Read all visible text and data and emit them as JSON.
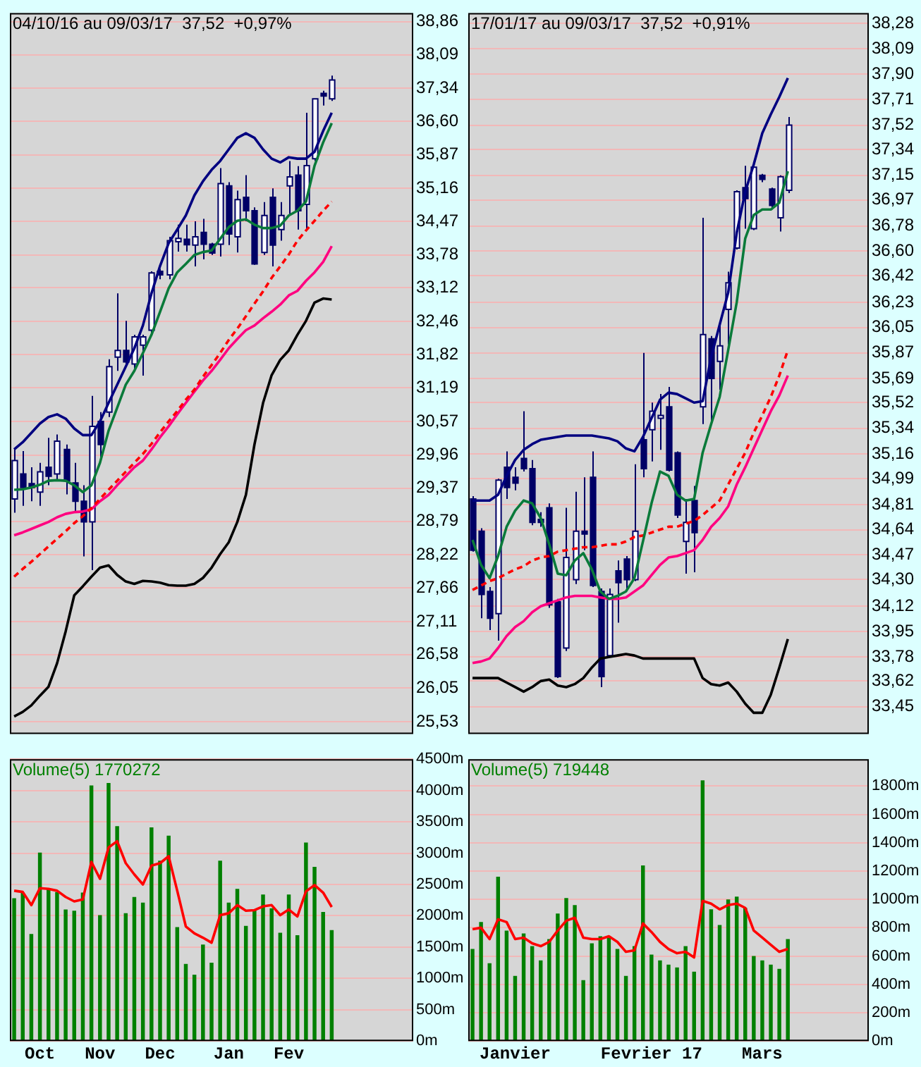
{
  "chart_data": [
    {
      "type": "candlestick",
      "title": "04/10/16 au 09/03/17  37,52  +0,97%",
      "log": "y",
      "grid": "y",
      "marker": "none",
      "tick_labels": "y",
      "color": "#000066",
      "colors": [
        "#ffffff",
        "#000066",
        "#000066",
        "#ffffff",
        "#000066",
        "#ffffff",
        "#000066",
        "#000066",
        "#000066",
        "#ffffff",
        "#000066",
        "#ffffff",
        "#ffffff",
        "#000066",
        "#ffffff",
        "#ffffff",
        "#ffffff",
        "#000066",
        "#ffffff",
        "#ffffff",
        "#000066",
        "#ffffff",
        "#000066",
        "#000066",
        "#ffffff",
        "#000066",
        "#ffffff",
        "#000066",
        "#000066",
        "#ffffff",
        "#000066",
        "#ffffff",
        "#ffffff",
        "#000066",
        "#ffffff",
        "#ffffff",
        "#000066",
        "#ffffff",
        null,
        null,
        null,
        null,
        null,
        null,
        null,
        null,
        null
      ],
      "categories": [
        null,
        null,
        null,
        null,
        null,
        null,
        null,
        null,
        null,
        null,
        null,
        null,
        null,
        null,
        null,
        null,
        null,
        null,
        null,
        null,
        null,
        null,
        null,
        null,
        null,
        null,
        null,
        null,
        null,
        null,
        null,
        null,
        null,
        null,
        null,
        null,
        null,
        null,
        null,
        null,
        null,
        null,
        null,
        null,
        null,
        null,
        null
      ],
      "ylim": [
        25.34,
        39.06
      ],
      "yticks": [
        {
          "value": 25.53,
          "label": "25,53"
        },
        {
          "value": 26.05,
          "label": "26,05"
        },
        {
          "value": 26.58,
          "label": "26,58"
        },
        {
          "value": 27.11,
          "label": "27,11"
        },
        {
          "value": 27.66,
          "label": "27,66"
        },
        {
          "value": 28.22,
          "label": "28,22"
        },
        {
          "value": 28.79,
          "label": "28,79"
        },
        {
          "value": 29.37,
          "label": "29,37"
        },
        {
          "value": 29.96,
          "label": "29,96"
        },
        {
          "value": 30.57,
          "label": "30,57"
        },
        {
          "value": 31.19,
          "label": "31,19"
        },
        {
          "value": 31.82,
          "label": "31,82"
        },
        {
          "value": 32.46,
          "label": "32,46"
        },
        {
          "value": 33.12,
          "label": "33,12"
        },
        {
          "value": 33.78,
          "label": "33,78"
        },
        {
          "value": 34.47,
          "label": "34,47"
        },
        {
          "value": 35.16,
          "label": "35,16"
        },
        {
          "value": 35.87,
          "label": "35,87"
        },
        {
          "value": 36.6,
          "label": "36,60"
        },
        {
          "value": 37.34,
          "label": "37,34"
        },
        {
          "value": 38.09,
          "label": "38,09"
        },
        {
          "value": 38.86,
          "label": "38,86"
        }
      ],
      "ohlc": [
        [
          29.18,
          30.06,
          28.94,
          29.86
        ],
        [
          29.62,
          30.03,
          29.06,
          29.38
        ],
        [
          29.45,
          29.74,
          29.14,
          29.38
        ],
        [
          29.3,
          29.82,
          29.06,
          29.66
        ],
        [
          29.74,
          30.27,
          29.42,
          29.58
        ],
        [
          29.62,
          30.33,
          29.5,
          30.21
        ],
        [
          30.06,
          30.15,
          29.26,
          29.5
        ],
        [
          29.46,
          29.82,
          28.94,
          29.14
        ],
        [
          29.14,
          29.42,
          28.19,
          28.78
        ],
        [
          28.78,
          31.04,
          27.96,
          30.48
        ],
        [
          30.57,
          30.74,
          29.9,
          30.15
        ],
        [
          30.74,
          31.73,
          30.65,
          31.59
        ],
        [
          31.77,
          33.01,
          31.51,
          31.9
        ],
        [
          31.9,
          32.47,
          31.59,
          31.68
        ],
        [
          31.64,
          32.2,
          31.51,
          32.16
        ],
        [
          32.0,
          32.2,
          31.42,
          32.16
        ],
        [
          32.29,
          33.45,
          32.2,
          33.42
        ],
        [
          33.45,
          33.5,
          33.29,
          33.38
        ],
        [
          33.38,
          34.15,
          33.29,
          34.07
        ],
        [
          34.05,
          34.4,
          33.85,
          34.12
        ],
        [
          34.1,
          34.4,
          33.85,
          33.99
        ],
        [
          33.98,
          34.47,
          33.55,
          34.15
        ],
        [
          34.24,
          34.52,
          33.69,
          34.0
        ],
        [
          34.0,
          34.03,
          33.78,
          33.82
        ],
        [
          34.0,
          35.59,
          33.75,
          35.26
        ],
        [
          35.21,
          35.29,
          33.98,
          34.21
        ],
        [
          34.15,
          35.11,
          33.83,
          34.92
        ],
        [
          34.97,
          35.44,
          34.47,
          34.69
        ],
        [
          34.69,
          34.76,
          33.58,
          33.6
        ],
        [
          33.83,
          34.87,
          33.78,
          34.59
        ],
        [
          34.97,
          35.16,
          33.55,
          33.98
        ],
        [
          34.3,
          34.87,
          34.07,
          34.59
        ],
        [
          35.21,
          35.74,
          34.59,
          35.4
        ],
        [
          35.44,
          35.63,
          34.3,
          34.69
        ],
        [
          34.82,
          36.79,
          34.3,
          35.64
        ],
        [
          35.79,
          37.1,
          35.74,
          37.1
        ],
        [
          37.22,
          37.28,
          36.95,
          37.16
        ],
        [
          37.1,
          37.62,
          37.05,
          37.52
        ],
        null,
        null,
        null,
        null,
        null,
        null,
        null,
        null,
        null
      ],
      "series": [
        {
          "type": "line",
          "color": "#000080",
          "values": [
            30.06,
            30.19,
            30.36,
            30.53,
            30.65,
            30.7,
            30.62,
            30.44,
            30.32,
            30.32,
            30.57,
            30.91,
            31.25,
            31.59,
            31.94,
            32.38,
            33.01,
            33.56,
            34.02,
            34.3,
            34.59,
            35.01,
            35.31,
            35.55,
            35.74,
            35.99,
            36.24,
            36.34,
            36.24,
            35.99,
            35.79,
            35.71,
            35.82,
            35.79,
            35.79,
            35.94,
            36.39,
            36.79,
            null,
            null,
            null,
            null,
            null,
            null,
            null,
            null,
            null
          ]
        },
        {
          "type": "line",
          "color": "#0a7a3a",
          "values": [
            29.34,
            29.35,
            29.38,
            29.43,
            29.5,
            29.51,
            29.5,
            29.42,
            29.3,
            29.42,
            29.82,
            30.4,
            30.82,
            31.25,
            31.51,
            31.85,
            32.2,
            32.65,
            33.11,
            33.43,
            33.6,
            33.78,
            33.84,
            33.87,
            34.11,
            34.35,
            34.48,
            34.51,
            34.4,
            34.33,
            34.33,
            34.38,
            34.59,
            34.69,
            34.88,
            35.64,
            36.14,
            36.56,
            null,
            null,
            null,
            null,
            null,
            null,
            null,
            null,
            null
          ]
        },
        {
          "type": "line",
          "color": "#ff0000",
          "line_style": "dashed",
          "values": [
            27.85,
            27.98,
            28.1,
            28.23,
            28.36,
            28.49,
            28.62,
            28.76,
            28.88,
            29.02,
            29.18,
            29.34,
            29.5,
            29.66,
            29.82,
            29.98,
            30.16,
            30.37,
            30.57,
            30.76,
            30.97,
            31.16,
            31.4,
            31.62,
            31.85,
            32.1,
            32.32,
            32.56,
            32.81,
            33.05,
            33.32,
            33.55,
            33.79,
            34.07,
            34.28,
            34.48,
            34.69,
            34.88,
            null,
            null,
            null,
            null,
            null,
            null,
            null,
            null,
            null
          ]
        },
        {
          "type": "line",
          "color": "#ff0080",
          "values": [
            28.55,
            28.6,
            28.66,
            28.72,
            28.78,
            28.86,
            28.92,
            28.95,
            28.96,
            29.0,
            29.14,
            29.25,
            29.42,
            29.58,
            29.74,
            29.86,
            30.06,
            30.28,
            30.48,
            30.7,
            30.91,
            31.12,
            31.33,
            31.51,
            31.72,
            31.94,
            32.12,
            32.29,
            32.38,
            32.52,
            32.65,
            32.79,
            32.97,
            33.06,
            33.26,
            33.43,
            33.64,
            33.96,
            null,
            null,
            null,
            null,
            null,
            null,
            null,
            null,
            null
          ]
        },
        {
          "type": "line",
          "color": "#000000",
          "values": [
            25.61,
            25.68,
            25.78,
            25.93,
            26.07,
            26.44,
            26.95,
            27.54,
            27.69,
            27.85,
            28.0,
            28.04,
            27.88,
            27.77,
            27.73,
            27.78,
            27.77,
            27.75,
            27.71,
            27.7,
            27.7,
            27.73,
            27.83,
            28.0,
            28.23,
            28.43,
            28.78,
            29.25,
            30.15,
            30.91,
            31.43,
            31.72,
            31.9,
            32.2,
            32.47,
            32.83,
            32.91,
            32.89,
            null,
            null,
            null,
            null,
            null,
            null,
            null,
            null,
            null
          ]
        }
      ]
    },
    {
      "type": "candlestick",
      "title": "17/01/17 au 09/03/17  37,52  +0,91%",
      "log": "y",
      "grid": "y",
      "marker": "none",
      "tick_labels": "y",
      "color": "#000066",
      "colors": [
        "#000066",
        "#000066",
        "#000066",
        "#ffffff",
        "#000066",
        "#000066",
        "#000066",
        "#000066",
        "#000066",
        "#000066",
        "#000066",
        "#ffffff",
        "#ffffff",
        "#000066",
        "#000066",
        "#000066",
        "#ffffff",
        "#000066",
        "#000066",
        "#ffffff",
        "#000066",
        "#ffffff",
        "#ffffff",
        "#000066",
        "#000066",
        "#ffffff",
        "#000066",
        "#ffffff",
        "#000066",
        "#ffffff",
        "#ffffff",
        "#ffffff",
        "#000066",
        "#ffffff",
        "#000066",
        "#000066",
        "#ffffff",
        "#ffffff",
        null,
        null,
        null,
        null,
        null,
        null,
        null,
        null,
        null
      ],
      "categories": [
        null,
        null,
        null,
        null,
        null,
        null,
        null,
        null,
        null,
        null,
        null,
        null,
        null,
        null,
        null,
        null,
        null,
        null,
        null,
        null,
        null,
        null,
        null,
        null,
        null,
        null,
        null,
        null,
        null,
        null,
        null,
        null,
        null,
        null,
        null,
        null,
        null,
        null,
        null,
        null,
        null,
        null,
        null,
        null,
        null,
        null,
        null
      ],
      "ylim": [
        33.27,
        38.36
      ],
      "yticks": [
        {
          "value": 33.45,
          "label": "33,45"
        },
        {
          "value": 33.62,
          "label": "33,62"
        },
        {
          "value": 33.78,
          "label": "33,78"
        },
        {
          "value": 33.95,
          "label": "33,95"
        },
        {
          "value": 34.12,
          "label": "34,12"
        },
        {
          "value": 34.3,
          "label": "34,30"
        },
        {
          "value": 34.47,
          "label": "34,47"
        },
        {
          "value": 34.64,
          "label": "34,64"
        },
        {
          "value": 34.81,
          "label": "34,81"
        },
        {
          "value": 34.99,
          "label": "34,99"
        },
        {
          "value": 35.16,
          "label": "35,16"
        },
        {
          "value": 35.34,
          "label": "35,34"
        },
        {
          "value": 35.52,
          "label": "35,52"
        },
        {
          "value": 35.69,
          "label": "35,69"
        },
        {
          "value": 35.87,
          "label": "35,87"
        },
        {
          "value": 36.05,
          "label": "36,05"
        },
        {
          "value": 36.23,
          "label": "36,23"
        },
        {
          "value": 36.42,
          "label": "36,42"
        },
        {
          "value": 36.6,
          "label": "36,60"
        },
        {
          "value": 36.78,
          "label": "36,78"
        },
        {
          "value": 36.97,
          "label": "36,97"
        },
        {
          "value": 37.15,
          "label": "37,15"
        },
        {
          "value": 37.34,
          "label": "37,34"
        },
        {
          "value": 37.52,
          "label": "37,52"
        },
        {
          "value": 37.71,
          "label": "37,71"
        },
        {
          "value": 37.9,
          "label": "37,90"
        },
        {
          "value": 38.09,
          "label": "38,09"
        },
        {
          "value": 38.28,
          "label": "38,28"
        }
      ],
      "ohlc": [
        [
          34.85,
          34.87,
          34.49,
          34.5
        ],
        [
          34.63,
          34.65,
          34.04,
          34.2
        ],
        [
          34.22,
          34.25,
          33.96,
          34.04
        ],
        [
          34.07,
          34.99,
          33.89,
          34.98
        ],
        [
          35.07,
          35.18,
          34.85,
          34.93
        ],
        [
          35.0,
          35.07,
          34.91,
          34.96
        ],
        [
          35.13,
          35.46,
          35.04,
          35.06
        ],
        [
          35.06,
          35.12,
          34.67,
          34.69
        ],
        [
          34.71,
          34.76,
          34.66,
          34.69
        ],
        [
          34.79,
          34.82,
          34.11,
          34.13
        ],
        [
          34.15,
          34.17,
          33.64,
          33.65
        ],
        [
          33.84,
          34.79,
          33.82,
          34.45
        ],
        [
          34.3,
          34.9,
          34.27,
          34.63
        ],
        [
          34.63,
          35.0,
          34.5,
          34.61
        ],
        [
          35.0,
          35.18,
          34.25,
          34.26
        ],
        [
          34.22,
          34.24,
          33.58,
          33.65
        ],
        [
          33.79,
          34.24,
          33.78,
          34.2
        ],
        [
          34.36,
          34.43,
          34.01,
          34.28
        ],
        [
          34.44,
          34.46,
          34.23,
          34.3
        ],
        [
          34.3,
          35.09,
          34.29,
          34.63
        ],
        [
          35.26,
          35.87,
          35.0,
          35.06
        ],
        [
          35.33,
          35.52,
          35.11,
          35.46
        ],
        [
          35.41,
          35.58,
          35.19,
          35.43
        ],
        [
          35.49,
          35.63,
          35.04,
          35.05
        ],
        [
          35.17,
          35.18,
          34.72,
          34.74
        ],
        [
          34.56,
          34.85,
          34.34,
          34.69
        ],
        [
          34.84,
          34.94,
          34.35,
          34.62
        ],
        [
          35.49,
          36.84,
          35.37,
          36.0
        ],
        [
          35.97,
          35.99,
          35.39,
          35.69
        ],
        [
          35.81,
          36.07,
          35.61,
          35.92
        ],
        [
          36.18,
          36.45,
          35.93,
          36.37
        ],
        [
          36.62,
          37.04,
          36.61,
          37.03
        ],
        [
          37.06,
          37.22,
          36.76,
          36.98
        ],
        [
          36.76,
          37.22,
          36.75,
          37.21
        ],
        [
          37.15,
          37.16,
          37.1,
          37.12
        ],
        [
          37.05,
          37.06,
          36.9,
          36.93
        ],
        [
          36.84,
          37.15,
          36.74,
          37.14
        ],
        [
          37.04,
          37.58,
          37.02,
          37.52
        ],
        null,
        null,
        null,
        null,
        null,
        null,
        null,
        null,
        null
      ],
      "series": [
        {
          "type": "line",
          "color": "#000080",
          "values": [
            34.84,
            34.84,
            34.84,
            34.88,
            35.01,
            35.12,
            35.19,
            35.23,
            35.26,
            35.27,
            35.28,
            35.29,
            35.29,
            35.29,
            35.29,
            35.28,
            35.27,
            35.25,
            35.2,
            35.18,
            35.28,
            35.41,
            35.54,
            35.59,
            35.58,
            35.55,
            35.52,
            35.53,
            35.84,
            36.07,
            36.3,
            36.73,
            37.03,
            37.23,
            37.46,
            37.6,
            37.73,
            37.87,
            null,
            null,
            null,
            null,
            null,
            null,
            null,
            null,
            null
          ]
        },
        {
          "type": "line",
          "color": "#0a7a3a",
          "values": [
            34.57,
            34.4,
            34.31,
            34.46,
            34.66,
            34.77,
            34.84,
            34.82,
            34.72,
            34.54,
            34.34,
            34.33,
            34.43,
            34.48,
            34.37,
            34.22,
            34.17,
            34.19,
            34.22,
            34.31,
            34.56,
            34.82,
            35.04,
            35.01,
            34.88,
            34.84,
            34.85,
            35.17,
            35.37,
            35.56,
            35.89,
            36.23,
            36.69,
            36.86,
            36.9,
            36.9,
            36.95,
            37.18,
            null,
            null,
            null,
            null,
            null,
            null,
            null,
            null,
            null
          ]
        },
        {
          "type": "line",
          "color": "#ff0000",
          "line_style": "dashed",
          "values": [
            34.23,
            34.26,
            34.29,
            34.31,
            34.34,
            34.37,
            34.39,
            34.43,
            34.45,
            34.46,
            34.49,
            34.5,
            34.51,
            34.52,
            34.52,
            34.53,
            34.54,
            34.54,
            34.56,
            34.59,
            34.6,
            34.62,
            34.64,
            34.66,
            34.66,
            34.68,
            34.7,
            34.74,
            34.79,
            34.84,
            34.95,
            35.06,
            35.17,
            35.31,
            35.43,
            35.56,
            35.71,
            35.89,
            null,
            null,
            null,
            null,
            null,
            null,
            null,
            null,
            null
          ]
        },
        {
          "type": "line",
          "color": "#ff0080",
          "values": [
            33.74,
            33.75,
            33.77,
            33.84,
            33.92,
            33.98,
            34.02,
            34.08,
            34.12,
            34.14,
            34.16,
            34.18,
            34.19,
            34.19,
            34.19,
            34.18,
            34.17,
            34.17,
            34.18,
            34.22,
            34.26,
            34.33,
            34.4,
            34.45,
            34.46,
            34.48,
            34.5,
            34.57,
            34.66,
            34.72,
            34.8,
            34.95,
            35.07,
            35.2,
            35.33,
            35.46,
            35.57,
            35.71,
            null,
            null,
            null,
            null,
            null,
            null,
            null,
            null,
            null
          ]
        },
        {
          "type": "line",
          "color": "#000000",
          "values": [
            33.64,
            33.64,
            33.64,
            33.64,
            33.61,
            33.58,
            33.55,
            33.58,
            33.62,
            33.63,
            33.59,
            33.58,
            33.6,
            33.64,
            33.71,
            33.77,
            33.78,
            33.79,
            33.8,
            33.79,
            33.77,
            33.77,
            33.77,
            33.77,
            33.77,
            33.77,
            33.77,
            33.64,
            33.6,
            33.59,
            33.61,
            33.55,
            33.47,
            33.41,
            33.41,
            33.53,
            33.71,
            33.9,
            null,
            null,
            null,
            null,
            null,
            null,
            null,
            null,
            null
          ]
        }
      ]
    },
    {
      "type": "bar",
      "title": "Volume(5) 1770272",
      "grid": "y",
      "marker": "none",
      "categories": [
        null,
        null,
        null,
        "Oct",
        null,
        null,
        null,
        null,
        null,
        null,
        "Nov",
        null,
        null,
        null,
        null,
        null,
        null,
        "Dec",
        null,
        null,
        null,
        null,
        null,
        null,
        null,
        "Jan",
        null,
        null,
        null,
        null,
        null,
        null,
        "Fev",
        null,
        null,
        null,
        null,
        null,
        null,
        null,
        null,
        null,
        null,
        null,
        null,
        null,
        null
      ],
      "ylim": [
        0,
        4500
      ],
      "yticks": [
        {
          "value": 0,
          "label": "0m"
        },
        {
          "value": 500,
          "label": "500m"
        },
        {
          "value": 1000,
          "label": "1000m"
        },
        {
          "value": 1500,
          "label": "1500m"
        },
        {
          "value": 2000,
          "label": "2000m"
        },
        {
          "value": 2500,
          "label": "2500m"
        },
        {
          "value": 3000,
          "label": "3000m"
        },
        {
          "value": 3500,
          "label": "3500m"
        },
        {
          "value": 4000,
          "label": "4000m"
        },
        {
          "value": 4500,
          "label": "4500m"
        }
      ],
      "series": [
        {
          "type": "bar",
          "color": "#008000",
          "values": [
            2280,
            2370,
            1710,
            3010,
            2420,
            2380,
            2100,
            2080,
            2370,
            4080,
            2010,
            4120,
            3430,
            2040,
            2300,
            2210,
            3410,
            2880,
            3280,
            1820,
            1230,
            1060,
            1540,
            1250,
            2880,
            2210,
            2430,
            1840,
            2100,
            2340,
            2120,
            1730,
            2340,
            1690,
            3170,
            2780,
            2060,
            1770,
            null,
            null,
            null,
            null,
            null,
            null,
            null,
            null,
            null
          ]
        },
        {
          "type": "line",
          "color": "#ff0000",
          "values": [
            2400,
            2380,
            2170,
            2440,
            2430,
            2400,
            2300,
            2230,
            2260,
            2860,
            2590,
            3090,
            3190,
            2840,
            2660,
            2500,
            2800,
            2840,
            2950,
            2400,
            1830,
            1720,
            1650,
            1570,
            2010,
            2040,
            2170,
            2080,
            2090,
            2150,
            2170,
            2010,
            2100,
            1990,
            2390,
            2490,
            2370,
            2140,
            null,
            null,
            null,
            null,
            null,
            null,
            null,
            null,
            null
          ]
        }
      ]
    },
    {
      "type": "bar",
      "title": "Volume(5) 719448",
      "grid": "y",
      "marker": "none",
      "categories": [
        null,
        null,
        null,
        null,
        null,
        "Janvier",
        null,
        null,
        null,
        null,
        null,
        null,
        null,
        null,
        null,
        null,
        null,
        null,
        null,
        null,
        null,
        "Fevrier 17",
        null,
        null,
        null,
        null,
        null,
        null,
        null,
        null,
        null,
        null,
        null,
        null,
        "Mars",
        null,
        null,
        null,
        null,
        null,
        null,
        null,
        null,
        null,
        null,
        null,
        null
      ],
      "ylim": [
        0,
        1990
      ],
      "yticks": [
        {
          "value": 0,
          "label": "0m"
        },
        {
          "value": 200,
          "label": "200m"
        },
        {
          "value": 400,
          "label": "400m"
        },
        {
          "value": 600,
          "label": "600m"
        },
        {
          "value": 800,
          "label": "800m"
        },
        {
          "value": 1000,
          "label": "1000m"
        },
        {
          "value": 1200,
          "label": "1200m"
        },
        {
          "value": 1400,
          "label": "1400m"
        },
        {
          "value": 1600,
          "label": "1600m"
        },
        {
          "value": 1800,
          "label": "1800m"
        }
      ],
      "series": [
        {
          "type": "bar",
          "color": "#008000",
          "values": [
            650,
            840,
            550,
            1160,
            780,
            460,
            760,
            670,
            570,
            720,
            900,
            1010,
            960,
            430,
            690,
            740,
            730,
            650,
            460,
            670,
            1240,
            610,
            570,
            540,
            520,
            670,
            490,
            1840,
            930,
            820,
            1000,
            1020,
            940,
            600,
            570,
            540,
            510,
            720,
            null,
            null,
            null,
            null,
            null,
            null,
            null,
            null,
            null
          ]
        },
        {
          "type": "line",
          "color": "#ff0000",
          "values": [
            790,
            800,
            720,
            860,
            840,
            720,
            730,
            690,
            670,
            700,
            780,
            850,
            870,
            730,
            720,
            720,
            740,
            700,
            630,
            640,
            830,
            770,
            700,
            650,
            620,
            630,
            590,
            990,
            970,
            930,
            960,
            970,
            940,
            780,
            730,
            680,
            630,
            650,
            null,
            null,
            null,
            null,
            null,
            null,
            null,
            null,
            null
          ]
        }
      ]
    }
  ]
}
